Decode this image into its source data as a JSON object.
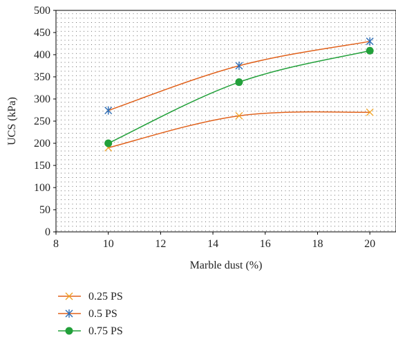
{
  "chart_data": {
    "type": "line",
    "title": "",
    "xlabel": "Marble dust (%)",
    "ylabel": "UCS (kPa)",
    "xlim": [
      8,
      21
    ],
    "ylim": [
      0,
      500
    ],
    "x_ticks": [
      8,
      10,
      12,
      14,
      16,
      18,
      20
    ],
    "y_ticks": [
      0,
      50,
      100,
      150,
      200,
      250,
      300,
      350,
      400,
      450,
      500
    ],
    "grid": "dotted",
    "legend_position": "bottom-left",
    "series": [
      {
        "name": "0.25 PS",
        "color": "#f0a020",
        "line_color": "#e0601a",
        "marker": "x",
        "x": [
          10,
          15,
          20
        ],
        "y": [
          190,
          262,
          270
        ]
      },
      {
        "name": "0.5 PS",
        "color": "#2e6db5",
        "line_color": "#e0601a",
        "marker": "asterisk",
        "x": [
          10,
          15,
          20
        ],
        "y": [
          274,
          375,
          430
        ]
      },
      {
        "name": "0.75 PS",
        "color": "#22a03a",
        "line_color": "#22a03a",
        "marker": "circle",
        "x": [
          10,
          15,
          20
        ],
        "y": [
          200,
          338,
          409
        ]
      }
    ]
  }
}
